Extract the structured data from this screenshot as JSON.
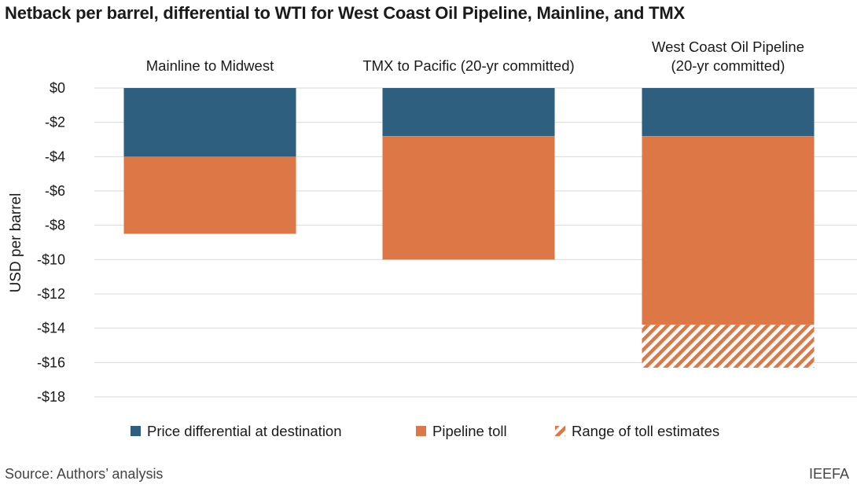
{
  "title": "Netback per barrel, differential to WTI for West Coast Oil Pipeline, Mainline, and TMX",
  "source": "Source: Authors’ analysis",
  "credit": "IEEFA",
  "colors": {
    "differential": "#2e5f7e",
    "toll": "#dd7745",
    "grid": "#d9d9d9"
  },
  "chart_data": {
    "type": "bar",
    "stacked": true,
    "categories": [
      [
        "Mainline to Midwest"
      ],
      [
        "TMX to Pacific (20-yr committed)"
      ],
      [
        "West Coast Oil Pipeline",
        "(20-yr committed)"
      ]
    ],
    "series": [
      {
        "name": "Price differential at destination",
        "values": [
          -4.0,
          -2.8,
          -2.8
        ]
      },
      {
        "name": "Pipeline toll",
        "values": [
          -4.5,
          -7.2,
          -11.0
        ]
      },
      {
        "name": "Range of toll estimates",
        "values": [
          0,
          0,
          -2.5
        ]
      }
    ],
    "ylabel": "USD per barrel",
    "ylim": [
      -18,
      0
    ],
    "yticks": [
      0,
      -2,
      -4,
      -6,
      -8,
      -10,
      -12,
      -14,
      -16,
      -18
    ],
    "ytick_labels": [
      "$0",
      "-$2",
      "-$4",
      "-$6",
      "-$8",
      "-$10",
      "-$12",
      "-$14",
      "-$16",
      "-$18"
    ],
    "grid": true,
    "legend_position": "bottom"
  }
}
